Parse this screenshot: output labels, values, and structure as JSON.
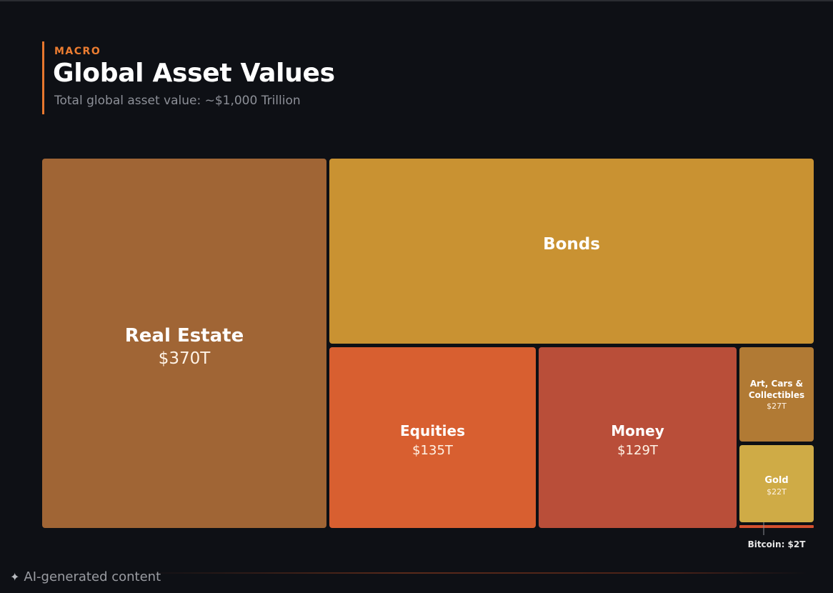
{
  "header": {
    "eyebrow": "MACRO",
    "title": "Global Asset Values",
    "subtitle": "Total global asset value: ~$1,000 Trillion"
  },
  "chart_data": {
    "type": "treemap",
    "title": "Global Asset Values",
    "subtitle": "Total global asset value: ~$1,000 Trillion",
    "unit": "trillion USD",
    "items": [
      {
        "name": "Real Estate",
        "value": 370,
        "label": "$370T",
        "color": "#a06535"
      },
      {
        "name": "Bonds",
        "value": 300,
        "label": "",
        "color": "#c99232"
      },
      {
        "name": "Equities",
        "value": 135,
        "label": "$135T",
        "color": "#d85f30"
      },
      {
        "name": "Money",
        "value": 129,
        "label": "$129T",
        "color": "#b94e39"
      },
      {
        "name": "Art, Cars & Collectibles",
        "value": 27,
        "label": "$27T",
        "color": "#b17a34"
      },
      {
        "name": "Gold",
        "value": 22,
        "label": "$22T",
        "color": "#cfab46"
      },
      {
        "name": "Bitcoin",
        "value": 2,
        "label": "Bitcoin: $2T",
        "color": "#d4502e"
      }
    ]
  },
  "footer": {
    "label": "AI-generated content",
    "icon": "sparkle-icon"
  }
}
